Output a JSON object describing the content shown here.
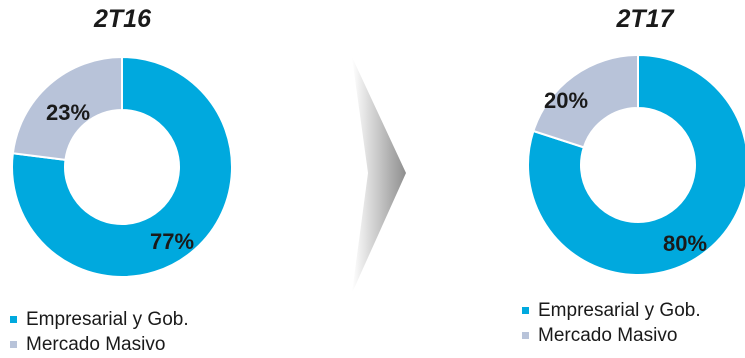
{
  "colors": {
    "business": "#00A9DE",
    "mass_market": "#B8C3D9"
  },
  "chart_data": [
    {
      "type": "pie",
      "title": "2T16",
      "categories": [
        "Empresarial y Gob.",
        "Mercado Masivo"
      ],
      "values": [
        77,
        23
      ],
      "labels": [
        "77%",
        "23%"
      ],
      "legend": [
        "Empresarial y Gob.",
        "Mercado Masivo"
      ],
      "legend_position": "bottom"
    },
    {
      "type": "pie",
      "title": "2T17",
      "categories": [
        "Empresarial y Gob.",
        "Mercado Masivo"
      ],
      "values": [
        80,
        20
      ],
      "labels": [
        "80%",
        "20%"
      ],
      "legend": [
        "Empresarial y Gob.",
        "Mercado Masivo"
      ],
      "legend_position": "bottom"
    }
  ]
}
